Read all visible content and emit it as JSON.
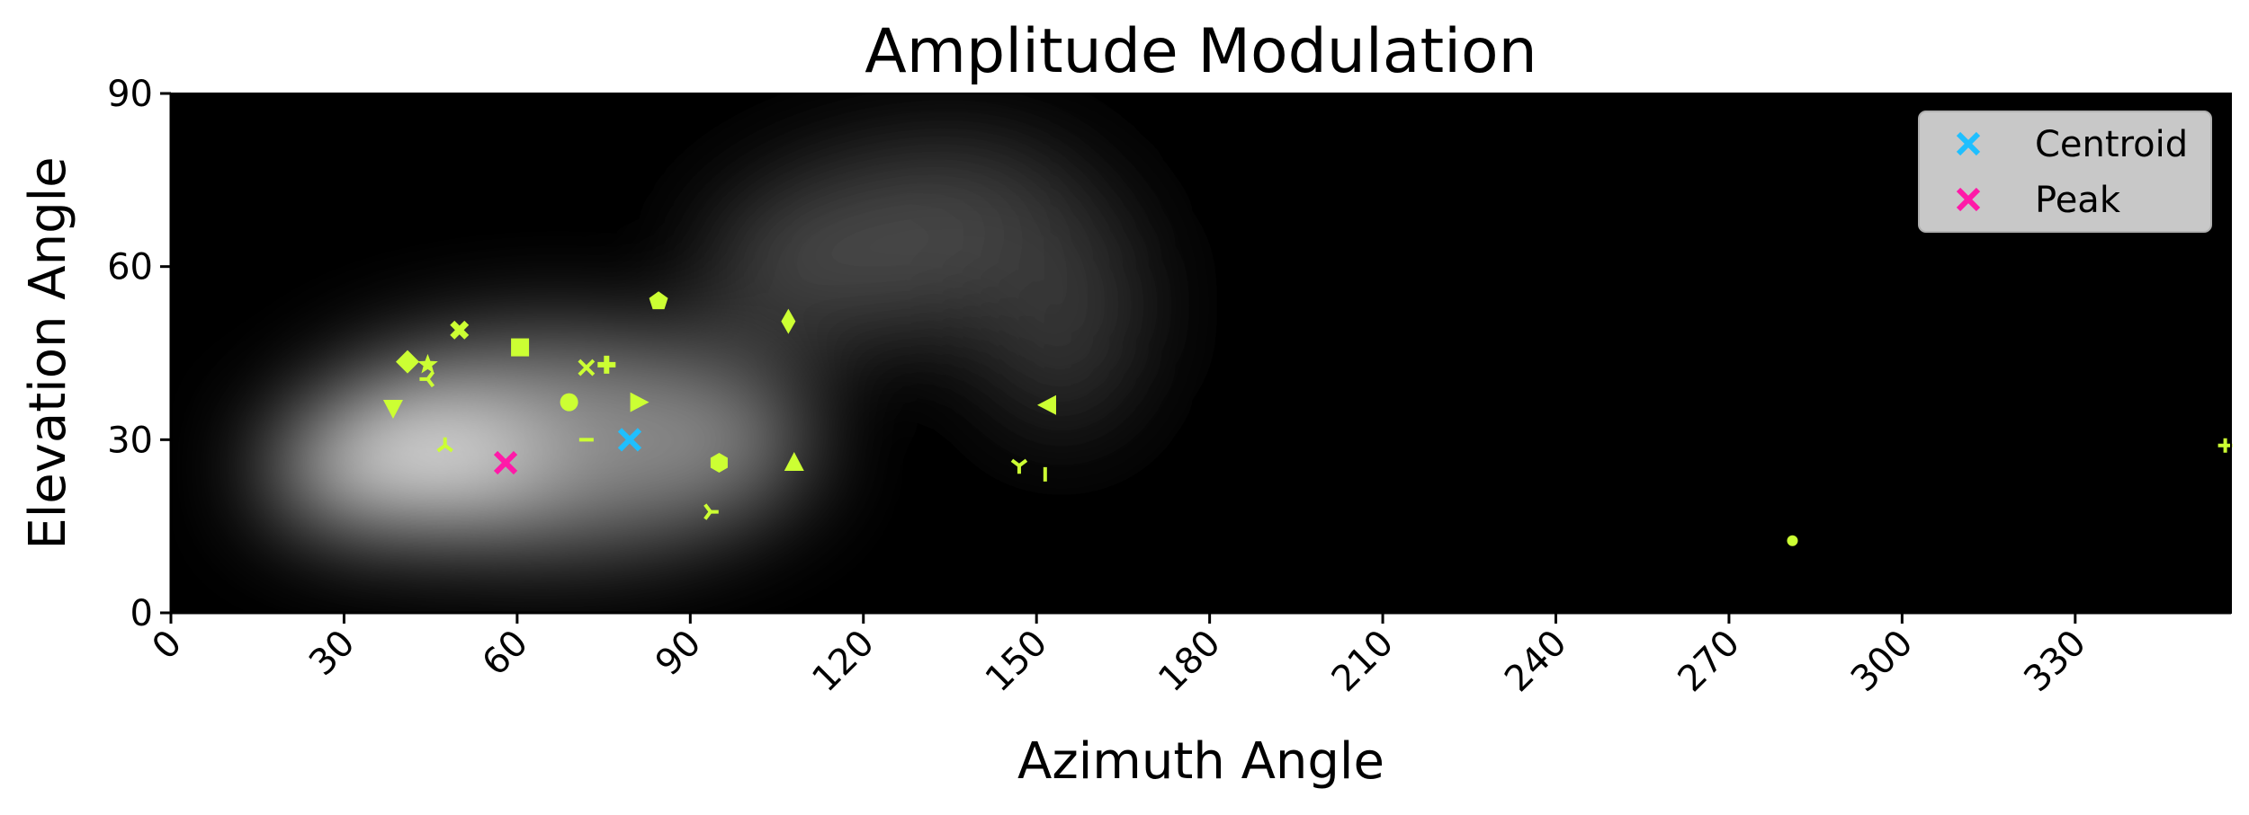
{
  "chart_data": {
    "type": "heatmap",
    "title": "Amplitude Modulation",
    "xlabel": "Azimuth Angle",
    "ylabel": "Elevation Angle",
    "xlim": [
      0,
      357
    ],
    "ylim": [
      0,
      90
    ],
    "x_ticks": [
      "0",
      "30",
      "60",
      "90",
      "120",
      "150",
      "180",
      "210",
      "240",
      "270",
      "300",
      "330"
    ],
    "y_ticks": [
      "0",
      "30",
      "60",
      "90"
    ],
    "grid": false,
    "legend_position": "top-right",
    "colormap": "gray",
    "background_color": "#000000",
    "marker_color": "#ccff33",
    "heatmap_description": "bright crescent-shaped blob, brightest around azimuth 30-80, elevation 20-40, arcing up toward azimuth 100-150, elevation 55-65",
    "points": [
      {
        "x": 41,
        "y": 43.5,
        "marker": "diamond"
      },
      {
        "x": 44.5,
        "y": 43,
        "marker": "star"
      },
      {
        "x": 44.5,
        "y": 40.5,
        "marker": "tri-left"
      },
      {
        "x": 50,
        "y": 49,
        "marker": "x-filled"
      },
      {
        "x": 60.5,
        "y": 46,
        "marker": "square"
      },
      {
        "x": 72,
        "y": 42.5,
        "marker": "x"
      },
      {
        "x": 75.5,
        "y": 43,
        "marker": "plus-filled"
      },
      {
        "x": 84.5,
        "y": 54,
        "marker": "pentagon"
      },
      {
        "x": 107,
        "y": 50.5,
        "marker": "thin-diamond"
      },
      {
        "x": 38.5,
        "y": 35.5,
        "marker": "triangle-down"
      },
      {
        "x": 69,
        "y": 36.5,
        "marker": "circle"
      },
      {
        "x": 81,
        "y": 36.5,
        "marker": "triangle-right"
      },
      {
        "x": 152,
        "y": 36,
        "marker": "triangle-left"
      },
      {
        "x": 47.5,
        "y": 29,
        "marker": "tri-up"
      },
      {
        "x": 72,
        "y": 30,
        "marker": "hline"
      },
      {
        "x": 95,
        "y": 26,
        "marker": "hexagon"
      },
      {
        "x": 108,
        "y": 26,
        "marker": "triangle-up"
      },
      {
        "x": 147,
        "y": 25.5,
        "marker": "tri-down"
      },
      {
        "x": 151.5,
        "y": 24,
        "marker": "vline"
      },
      {
        "x": 93.5,
        "y": 17.5,
        "marker": "tri-right"
      },
      {
        "x": 281,
        "y": 12.5,
        "marker": "point"
      },
      {
        "x": 356,
        "y": 29,
        "marker": "plus"
      }
    ],
    "series": [
      {
        "name": "Centroid",
        "color": "#1fbfff",
        "marker": "x",
        "x": 79.5,
        "y": 30
      },
      {
        "name": "Peak",
        "color": "#ff1aa8",
        "marker": "x",
        "x": 58,
        "y": 26
      }
    ]
  }
}
